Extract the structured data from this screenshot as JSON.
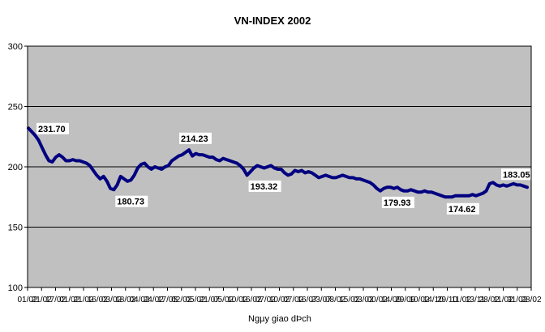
{
  "chart_data": {
    "type": "line",
    "title": "VN-INDEX 2002",
    "xlabel": "Ngµy giao dÞch",
    "ylabel": "",
    "ylim": [
      100,
      300
    ],
    "yticks": [
      100,
      150,
      200,
      250,
      300
    ],
    "grid": true,
    "plot_background": "#c0c0c0",
    "line_color": "#000080",
    "x_tick_labels": [
      "01/02",
      "21/02",
      "17/02",
      "01/02",
      "21/02",
      "16/02",
      "03/02",
      "18/02",
      "04/02",
      "24/02",
      "17/05",
      "02/02",
      "05/02",
      "21/07",
      "05/02",
      "10/02",
      "16/02",
      "07/02",
      "10/02",
      "07/02",
      "16/07",
      "23/07",
      "08/02",
      "15/02",
      "03/02",
      "00/02",
      "14/09",
      "29/09",
      "10/02",
      "14/10",
      "29/10",
      "11/02",
      "13/11",
      "28/02",
      "11/02",
      "31/02",
      "28/02"
    ],
    "series": [
      {
        "name": "",
        "values": [
          232,
          229,
          226,
          222,
          216,
          210,
          205,
          204,
          208,
          210,
          208,
          205,
          205,
          206,
          205,
          205,
          204,
          203,
          201,
          197,
          193,
          190,
          192,
          188,
          182,
          181,
          185,
          192,
          190,
          188,
          189,
          193,
          199,
          202,
          203,
          200,
          198,
          200,
          199,
          198,
          200,
          201,
          205,
          207,
          209,
          210,
          212,
          214,
          209,
          211,
          210,
          210,
          209,
          208,
          208,
          206,
          205,
          207,
          206,
          205,
          204,
          203,
          201,
          198,
          193,
          196,
          199,
          201,
          200,
          199,
          200,
          201,
          199,
          198,
          198,
          195,
          193,
          194,
          197,
          196,
          197,
          195,
          196,
          195,
          193,
          191,
          192,
          193,
          192,
          191,
          191,
          192,
          193,
          192,
          191,
          191,
          190,
          190,
          189,
          188,
          187,
          185,
          182,
          180,
          182,
          183,
          183,
          182,
          183,
          181,
          180,
          180,
          181,
          180,
          179,
          179,
          180,
          179,
          179,
          178,
          177,
          176,
          175,
          175,
          175,
          176,
          176,
          176,
          176,
          176,
          177,
          176,
          177,
          178,
          180,
          186,
          187,
          185,
          184,
          185,
          184,
          185,
          186,
          185,
          185,
          184,
          183
        ]
      }
    ],
    "annotations": [
      {
        "label": "231.70",
        "index": 0,
        "value": 231.7
      },
      {
        "label": "180.73",
        "index": 25,
        "value": 180.73
      },
      {
        "label": "214.23",
        "index": 47,
        "value": 214.23
      },
      {
        "label": "193.32",
        "index": 64,
        "value": 193.32
      },
      {
        "label": "179.93",
        "index": 103,
        "value": 179.93
      },
      {
        "label": "174.62",
        "index": 122,
        "value": 174.62
      },
      {
        "label": "183.05",
        "index": 146,
        "value": 183.05
      }
    ]
  }
}
